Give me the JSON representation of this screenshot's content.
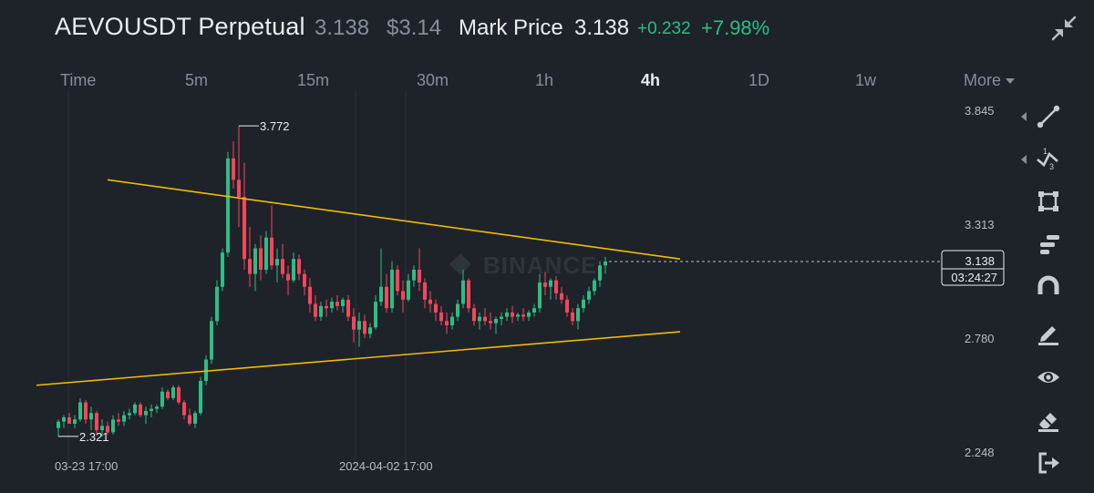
{
  "header": {
    "symbol": "AEVOUSDT Perpetual",
    "last_price": "3.138",
    "usd_price": "$3.14",
    "mark_label": "Mark Price",
    "mark_price": "3.138",
    "change": "+0.232",
    "change_pct": "+7.98%",
    "collapse_icon": "collapse-arrows-icon"
  },
  "tabs": [
    {
      "label": "Time",
      "active": false
    },
    {
      "label": "5m",
      "active": false
    },
    {
      "label": "15m",
      "active": false
    },
    {
      "label": "30m",
      "active": false
    },
    {
      "label": "1h",
      "active": false
    },
    {
      "label": "4h",
      "active": true
    },
    {
      "label": "1D",
      "active": false
    },
    {
      "label": "1w",
      "active": false
    },
    {
      "label": "More",
      "active": false
    }
  ],
  "chart": {
    "watermark": "BINANCE",
    "price_label": "3.138",
    "countdown": "03:24:27",
    "high_label": "3.772",
    "low_label": "2.321",
    "colors": {
      "up": "#2ebd85",
      "down": "#f6465d",
      "trendline": "#f0b90b",
      "axis_text": "#b7bdc6",
      "grid": "#2b3139"
    }
  },
  "chart_data": {
    "type": "candlestick",
    "interval": "4h",
    "y_ticks": [
      3.845,
      3.313,
      2.78,
      2.248
    ],
    "x_ticks": [
      "03-23 17:00",
      "2024-04-02 17:00"
    ],
    "ylim": [
      2.18,
      3.9
    ],
    "current_price": 3.138,
    "high": 3.772,
    "low": 2.321,
    "candles": [
      [
        2.36,
        2.4,
        2.32,
        2.39
      ],
      [
        2.39,
        2.42,
        2.36,
        2.41
      ],
      [
        2.41,
        2.43,
        2.38,
        2.38
      ],
      [
        2.38,
        2.42,
        2.36,
        2.4
      ],
      [
        2.4,
        2.5,
        2.39,
        2.48
      ],
      [
        2.48,
        2.49,
        2.38,
        2.4
      ],
      [
        2.4,
        2.46,
        2.35,
        2.43
      ],
      [
        2.43,
        2.44,
        2.33,
        2.35
      ],
      [
        2.35,
        2.4,
        2.32,
        2.37
      ],
      [
        2.37,
        2.39,
        2.33,
        2.34
      ],
      [
        2.34,
        2.42,
        2.33,
        2.4
      ],
      [
        2.4,
        2.43,
        2.37,
        2.39
      ],
      [
        2.39,
        2.44,
        2.37,
        2.42
      ],
      [
        2.42,
        2.45,
        2.4,
        2.43
      ],
      [
        2.43,
        2.48,
        2.42,
        2.47
      ],
      [
        2.47,
        2.48,
        2.41,
        2.42
      ],
      [
        2.42,
        2.46,
        2.38,
        2.44
      ],
      [
        2.44,
        2.47,
        2.41,
        2.45
      ],
      [
        2.45,
        2.47,
        2.43,
        2.46
      ],
      [
        2.46,
        2.55,
        2.45,
        2.53
      ],
      [
        2.53,
        2.54,
        2.49,
        2.5
      ],
      [
        2.5,
        2.56,
        2.49,
        2.55
      ],
      [
        2.55,
        2.56,
        2.47,
        2.48
      ],
      [
        2.48,
        2.49,
        2.4,
        2.42
      ],
      [
        2.42,
        2.45,
        2.37,
        2.38
      ],
      [
        2.38,
        2.44,
        2.36,
        2.43
      ],
      [
        2.43,
        2.6,
        2.42,
        2.58
      ],
      [
        2.58,
        2.7,
        2.56,
        2.68
      ],
      [
        2.68,
        2.88,
        2.66,
        2.86
      ],
      [
        2.86,
        3.05,
        2.84,
        3.02
      ],
      [
        3.02,
        3.2,
        3.0,
        3.18
      ],
      [
        3.18,
        3.65,
        3.16,
        3.62
      ],
      [
        3.62,
        3.7,
        3.48,
        3.52
      ],
      [
        3.52,
        3.772,
        3.3,
        3.44
      ],
      [
        3.44,
        3.6,
        3.1,
        3.15
      ],
      [
        3.15,
        3.3,
        3.02,
        3.08
      ],
      [
        3.08,
        3.22,
        3.0,
        3.2
      ],
      [
        3.2,
        3.26,
        3.05,
        3.1
      ],
      [
        3.1,
        3.28,
        3.08,
        3.25
      ],
      [
        3.25,
        3.4,
        3.1,
        3.12
      ],
      [
        3.12,
        3.2,
        3.04,
        3.15
      ],
      [
        3.15,
        3.22,
        3.06,
        3.08
      ],
      [
        3.08,
        3.12,
        2.98,
        3.05
      ],
      [
        3.05,
        3.18,
        3.04,
        3.15
      ],
      [
        3.15,
        3.17,
        3.05,
        3.08
      ],
      [
        3.08,
        3.1,
        2.98,
        3.02
      ],
      [
        3.02,
        3.06,
        2.9,
        2.94
      ],
      [
        2.94,
        2.98,
        2.86,
        2.88
      ],
      [
        2.88,
        2.95,
        2.86,
        2.93
      ],
      [
        2.93,
        2.96,
        2.88,
        2.92
      ],
      [
        2.92,
        2.97,
        2.9,
        2.95
      ],
      [
        2.95,
        2.98,
        2.91,
        2.93
      ],
      [
        2.93,
        2.97,
        2.9,
        2.96
      ],
      [
        2.96,
        2.98,
        2.86,
        2.88
      ],
      [
        2.88,
        2.92,
        2.76,
        2.82
      ],
      [
        2.82,
        2.9,
        2.74,
        2.86
      ],
      [
        2.86,
        2.89,
        2.78,
        2.8
      ],
      [
        2.8,
        2.85,
        2.78,
        2.83
      ],
      [
        2.83,
        2.98,
        2.82,
        2.95
      ],
      [
        2.95,
        3.2,
        2.93,
        3.02
      ],
      [
        3.02,
        3.08,
        2.9,
        2.92
      ],
      [
        2.92,
        3.14,
        2.9,
        3.1
      ],
      [
        3.1,
        3.12,
        2.98,
        3.0
      ],
      [
        3.0,
        3.05,
        2.9,
        2.96
      ],
      [
        2.96,
        3.08,
        2.95,
        3.05
      ],
      [
        3.05,
        3.12,
        3.02,
        3.1
      ],
      [
        3.1,
        3.2,
        3.0,
        3.04
      ],
      [
        3.04,
        3.06,
        2.92,
        2.96
      ],
      [
        2.96,
        3.0,
        2.9,
        2.94
      ],
      [
        2.94,
        2.96,
        2.86,
        2.9
      ],
      [
        2.9,
        2.93,
        2.84,
        2.86
      ],
      [
        2.86,
        2.9,
        2.8,
        2.84
      ],
      [
        2.84,
        2.9,
        2.82,
        2.88
      ],
      [
        2.88,
        2.96,
        2.86,
        2.94
      ],
      [
        2.94,
        3.1,
        2.92,
        3.05
      ],
      [
        3.05,
        3.06,
        2.9,
        2.92
      ],
      [
        2.92,
        2.94,
        2.84,
        2.86
      ],
      [
        2.86,
        2.9,
        2.82,
        2.88
      ],
      [
        2.88,
        2.92,
        2.84,
        2.86
      ],
      [
        2.86,
        2.9,
        2.82,
        2.85
      ],
      [
        2.85,
        2.88,
        2.8,
        2.87
      ],
      [
        2.87,
        2.9,
        2.84,
        2.88
      ],
      [
        2.88,
        2.92,
        2.86,
        2.9
      ],
      [
        2.9,
        2.93,
        2.85,
        2.88
      ],
      [
        2.88,
        2.9,
        2.86,
        2.89
      ],
      [
        2.89,
        2.92,
        2.86,
        2.88
      ],
      [
        2.88,
        2.91,
        2.86,
        2.9
      ],
      [
        2.9,
        2.94,
        2.88,
        2.92
      ],
      [
        2.92,
        3.08,
        2.9,
        3.04
      ],
      [
        3.04,
        3.09,
        2.98,
        3.02
      ],
      [
        3.02,
        3.06,
        2.96,
        3.05
      ],
      [
        3.05,
        3.07,
        2.96,
        2.99
      ],
      [
        2.99,
        3.02,
        2.94,
        2.96
      ],
      [
        2.96,
        2.98,
        2.88,
        2.9
      ],
      [
        2.9,
        2.92,
        2.84,
        2.86
      ],
      [
        2.86,
        2.94,
        2.82,
        2.92
      ],
      [
        2.92,
        2.98,
        2.9,
        2.96
      ],
      [
        2.96,
        3.02,
        2.94,
        3.0
      ],
      [
        3.0,
        3.06,
        2.98,
        3.05
      ],
      [
        3.05,
        3.14,
        3.02,
        3.12
      ],
      [
        3.12,
        3.16,
        3.08,
        3.138
      ]
    ],
    "trendlines": [
      {
        "from": [
          5,
          2.56
        ],
        "to": [
          93,
          2.81
        ]
      },
      {
        "from": [
          18,
          3.52
        ],
        "to": [
          93,
          3.15
        ]
      }
    ]
  },
  "toolbar": [
    {
      "icon": "trend-line-icon",
      "submenu": true
    },
    {
      "icon": "fibonacci-tool-icon",
      "submenu": true
    },
    {
      "icon": "rectangle-tool-icon",
      "submenu": false
    },
    {
      "icon": "text-tool-icon",
      "submenu": false
    },
    {
      "icon": "magnet-icon",
      "submenu": false
    },
    {
      "icon": "pencil-icon",
      "submenu": false
    },
    {
      "icon": "eye-icon",
      "submenu": false
    },
    {
      "icon": "eraser-icon",
      "submenu": false
    },
    {
      "icon": "exit-drawing-icon",
      "submenu": false
    }
  ]
}
